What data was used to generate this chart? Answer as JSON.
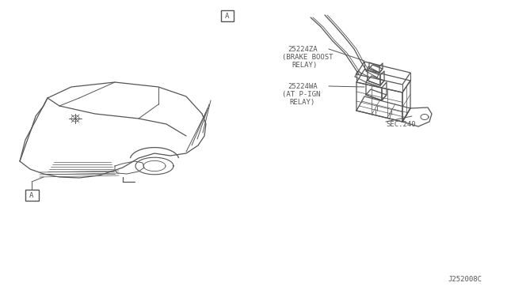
{
  "bg_color": "#ffffff",
  "line_color": "#555555",
  "text_color": "#555555",
  "fig_width": 6.4,
  "fig_height": 3.72,
  "dpi": 100,
  "label_part1_code": "25224ZA",
  "label_part1_line1": "(BRAKE BOOST",
  "label_part1_line2": "RELAY)",
  "label_part2_code": "25224WA",
  "label_part2_line1": "(AT P-IGN",
  "label_part2_line2": "RELAY)",
  "label_sec": "SEC.240",
  "label_partnum": "J252008C",
  "label_A_top": "A",
  "label_A_car": "A"
}
